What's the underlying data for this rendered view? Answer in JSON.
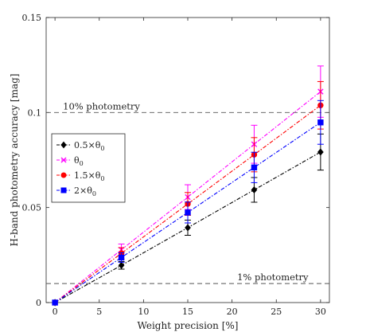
{
  "chart_data": {
    "type": "line",
    "xlabel": "Weight precision [%]",
    "ylabel": "H-band photometry accuracy [mag]",
    "xlim": [
      -1,
      31
    ],
    "ylim": [
      0,
      0.15
    ],
    "xticks": [
      0,
      5,
      10,
      15,
      20,
      25,
      30
    ],
    "xtick_labels": [
      "0",
      "5",
      "10",
      "15",
      "20",
      "25",
      "30"
    ],
    "yticks": [
      0,
      0.05,
      0.1,
      0.15
    ],
    "ytick_labels": [
      "0",
      "0.05",
      "0.1",
      "0.15"
    ],
    "grid": false,
    "legend_position": "left",
    "x": [
      0,
      7.5,
      15,
      22.5,
      30
    ],
    "series": [
      {
        "name": "0.5×θ0",
        "label_main": "0.5×θ",
        "label_sub": "0",
        "color": "#000000",
        "marker": "diamond",
        "values": [
          0,
          0.0196,
          0.0394,
          0.0593,
          0.0792
        ],
        "errors": [
          0,
          0.002,
          0.004,
          0.0065,
          0.0095
        ]
      },
      {
        "name": "θ0",
        "label_main": "θ",
        "label_sub": "0",
        "color": "#ff00ff",
        "marker": "x",
        "values": [
          0,
          0.0278,
          0.0555,
          0.0833,
          0.111
        ],
        "errors": [
          0,
          0.003,
          0.0065,
          0.01,
          0.0135
        ]
      },
      {
        "name": "1.5×θ0",
        "label_main": "1.5×θ",
        "label_sub": "0",
        "color": "#ff0000",
        "marker": "circle",
        "values": [
          0,
          0.0259,
          0.0519,
          0.0778,
          0.1038
        ],
        "errors": [
          0,
          0.003,
          0.006,
          0.009,
          0.0125
        ]
      },
      {
        "name": "2×θ0",
        "label_main": "2×θ",
        "label_sub": "0",
        "color": "#0000ff",
        "marker": "square",
        "values": [
          0,
          0.0237,
          0.0474,
          0.0711,
          0.0948
        ],
        "errors": [
          0,
          0.0025,
          0.0055,
          0.008,
          0.0115
        ]
      }
    ],
    "reference_lines": [
      {
        "y": 0.1,
        "label": "10% photometry",
        "label_position": "left"
      },
      {
        "y": 0.01,
        "label": "1% photometry",
        "label_position": "right"
      }
    ]
  }
}
